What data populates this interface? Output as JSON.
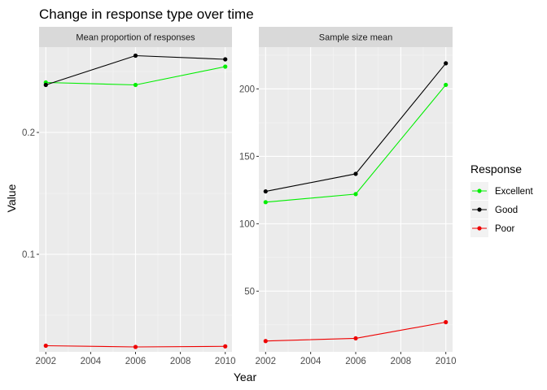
{
  "chart_data": {
    "type": "line",
    "title": "Change in response type over time",
    "xlabel": "Year",
    "ylabel": "Value",
    "x_ticks": [
      "2002",
      "2004",
      "2006",
      "2008",
      "2010"
    ],
    "legend": {
      "title": "Response",
      "entries": [
        {
          "name": "Excellent",
          "color": "#00ee00"
        },
        {
          "name": "Good",
          "color": "#000000"
        },
        {
          "name": "Poor",
          "color": "#ee0000"
        }
      ],
      "position": "right"
    },
    "grid": true,
    "panels": [
      {
        "strip": "Mean proportion of responses",
        "x": [
          2002,
          2006,
          2010
        ],
        "xlim": [
          2001.7,
          2010.3
        ],
        "ylim": [
          0.02,
          0.27
        ],
        "y_ticks": [
          0.1,
          0.2
        ],
        "y_tick_labels": [
          "0.1",
          "0.2"
        ],
        "series": [
          {
            "name": "Excellent",
            "color": "#00ee00",
            "values": [
              0.241,
              0.239,
              0.254
            ]
          },
          {
            "name": "Good",
            "color": "#000000",
            "values": [
              0.239,
              0.263,
              0.26
            ]
          },
          {
            "name": "Poor",
            "color": "#ee0000",
            "values": [
              0.025,
              0.024,
              0.0245
            ]
          }
        ]
      },
      {
        "strip": "Sample size mean",
        "x": [
          2002,
          2006,
          2010
        ],
        "xlim": [
          2001.7,
          2010.3
        ],
        "ylim": [
          5,
          231
        ],
        "y_ticks": [
          50,
          100,
          150,
          200
        ],
        "y_tick_labels": [
          "50",
          "100",
          "150",
          "200"
        ],
        "series": [
          {
            "name": "Excellent",
            "color": "#00ee00",
            "values": [
              116,
              122,
              203
            ]
          },
          {
            "name": "Good",
            "color": "#000000",
            "values": [
              124,
              137,
              219
            ]
          },
          {
            "name": "Poor",
            "color": "#ee0000",
            "values": [
              13,
              15,
              27
            ]
          }
        ]
      }
    ]
  }
}
